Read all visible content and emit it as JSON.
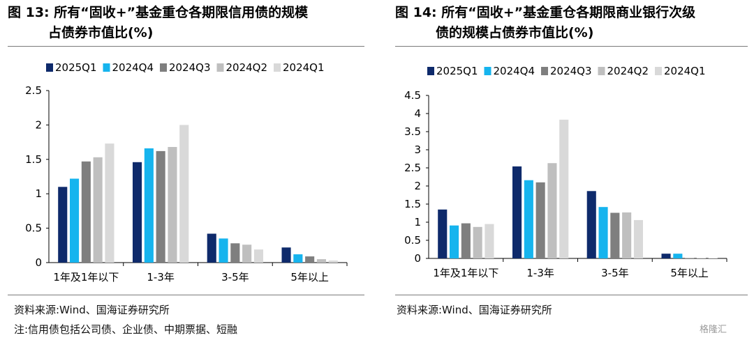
{
  "titles": {
    "left_line1": "图 13:  所有“固收+”基金重仓各期限信用债的规模",
    "left_line2": "占债券市值比(%)",
    "right_line1": "图 14:  所有“固收+”基金重仓各期限商业银行次级",
    "right_line2": "债的规模占债券市值比(%)"
  },
  "footer": {
    "source_left": "资料来源:Wind、国海证券研究所",
    "source_right": "资料来源:Wind、国海证券研究所",
    "note_left": "注:信用债包括公司债、企业债、中期票据、短融",
    "watermark": "格隆汇"
  },
  "colors": {
    "2025Q1": "#0e2a6b",
    "2024Q4": "#16b4ee",
    "2024Q3": "#7f7f7f",
    "2024Q2": "#bfbfbf",
    "2024Q1": "#d9d9d9"
  },
  "chart_data": [
    {
      "type": "bar",
      "title": "图 13:  所有“固收+”基金重仓各期限信用债的规模占债券市值比(%)",
      "categories": [
        "1年及1年以下",
        "1-3年",
        "3-5年",
        "5年以上"
      ],
      "series": [
        {
          "name": "2025Q1",
          "values": [
            1.1,
            1.46,
            0.42,
            0.22
          ]
        },
        {
          "name": "2024Q4",
          "values": [
            1.22,
            1.66,
            0.35,
            0.12
          ]
        },
        {
          "name": "2024Q3",
          "values": [
            1.47,
            1.62,
            0.28,
            0.09
          ]
        },
        {
          "name": "2024Q2",
          "values": [
            1.53,
            1.68,
            0.26,
            0.05
          ]
        },
        {
          "name": "2024Q1",
          "values": [
            1.73,
            2.0,
            0.19,
            0.03
          ]
        }
      ],
      "ylim": [
        0,
        2.5
      ],
      "yticks": [
        "0",
        "0.5",
        "1",
        "1.5",
        "2",
        "2.5"
      ],
      "xlabel": "",
      "ylabel": "",
      "legend": "top"
    },
    {
      "type": "bar",
      "title": "图 14:  所有“固收+”基金重仓各期限商业银行次级债的规模占债券市值比(%)",
      "categories": [
        "1年及1年以下",
        "1-3年",
        "3-5年",
        "5年以上"
      ],
      "series": [
        {
          "name": "2025Q1",
          "values": [
            1.35,
            2.54,
            1.86,
            0.13
          ]
        },
        {
          "name": "2024Q4",
          "values": [
            0.91,
            2.16,
            1.42,
            0.13
          ]
        },
        {
          "name": "2024Q3",
          "values": [
            0.97,
            2.1,
            1.26,
            0.01
          ]
        },
        {
          "name": "2024Q2",
          "values": [
            0.87,
            2.63,
            1.27,
            0.01
          ]
        },
        {
          "name": "2024Q1",
          "values": [
            0.95,
            3.83,
            1.06,
            0.01
          ]
        }
      ],
      "ylim": [
        0,
        4.5
      ],
      "yticks": [
        "0",
        "0.5",
        "1",
        "1.5",
        "2",
        "2.5",
        "3",
        "3.5",
        "4",
        "4.5"
      ],
      "xlabel": "",
      "ylabel": "",
      "legend": "top"
    }
  ]
}
